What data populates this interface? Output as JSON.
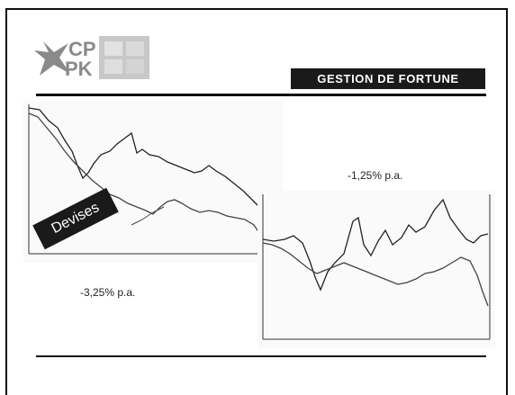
{
  "header": {
    "title": "GESTION DE FORTUNE"
  },
  "logo": {
    "text_top": "CP",
    "text_bottom": "PK"
  },
  "banner": {
    "label": "Devises"
  },
  "stats": {
    "left_chart": "-3,25% p.a.",
    "right_chart": "-1,25% p.a."
  },
  "colors": {
    "accent": "#1a1a1a",
    "background": "#ffffff",
    "logo_gray": "#8a8a8a"
  },
  "chart_data": [
    {
      "type": "line",
      "series": [
        {
          "values": []
        },
        {
          "values": []
        }
      ]
    },
    {
      "type": "line",
      "series": [
        {
          "values": []
        },
        {
          "values": []
        }
      ]
    }
  ]
}
